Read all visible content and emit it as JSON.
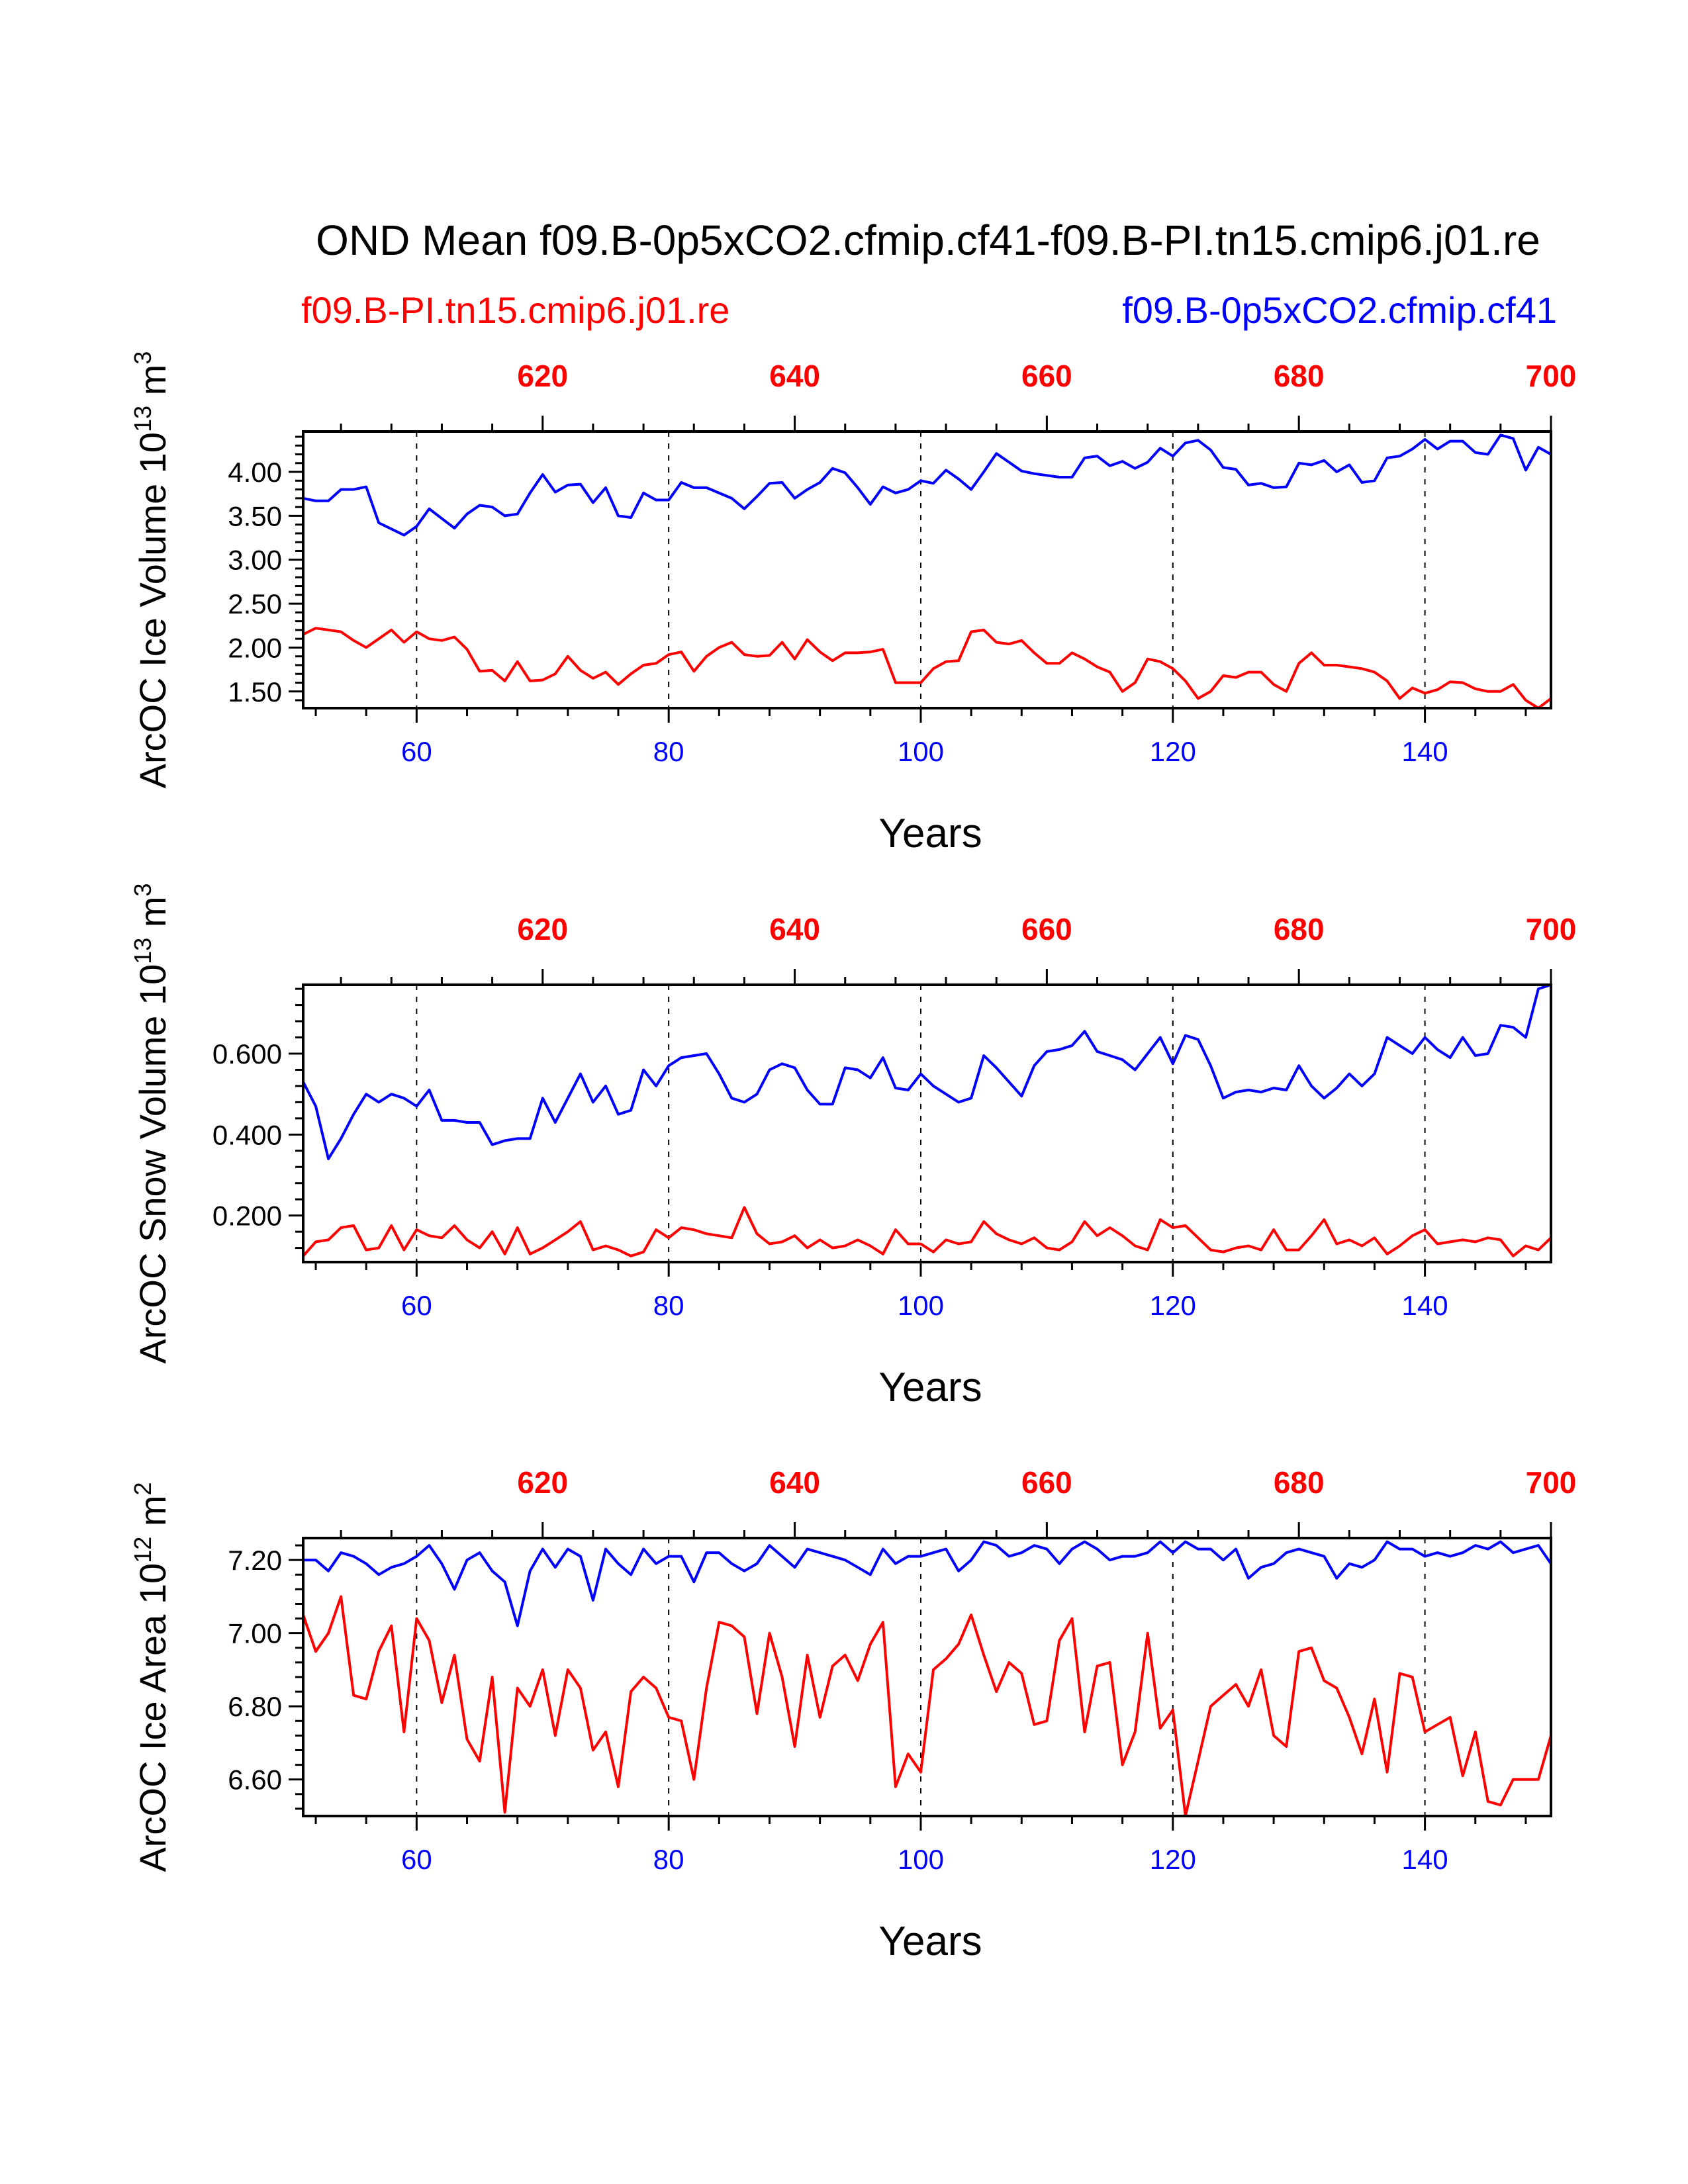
{
  "title": "OND Mean f09.B-0p5xCO2.cfmip.cf41-f09.B-PI.tn15.cmip6.j01.re",
  "legend": {
    "left": {
      "text": "f09.B-PI.tn15.cmip6.j01.re",
      "color": "#ff0000"
    },
    "right": {
      "text": "f09.B-0p5xCO2.cfmip.cf41",
      "color": "#0000ff"
    }
  },
  "chart_data": [
    {
      "type": "line",
      "ylabel_main": "ArcOC Ice Volume 10",
      "ylabel_exp": "13",
      "ylabel_unit": "m",
      "ylabel_unit_exp": "3",
      "xlabel": "Years",
      "xlim": [
        51,
        150
      ],
      "ylim": [
        1.31,
        4.46
      ],
      "yticks": [
        "1.50",
        "2.00",
        "2.50",
        "3.00",
        "3.50",
        "4.00"
      ],
      "ytick_values": [
        1.5,
        2.0,
        2.5,
        3.0,
        3.5,
        4.0
      ],
      "yminor_step": 0.1,
      "xticks_bottom": [
        "60",
        "80",
        "100",
        "120",
        "140"
      ],
      "xticks_top": [
        "620",
        "640",
        "660",
        "680",
        "700"
      ],
      "top_axis_offset": 550,
      "x_start": 51,
      "series": [
        {
          "name": "f09.B-0p5xCO2.cfmip.cf41",
          "color": "#0000ff",
          "values": [
            3.7,
            3.67,
            3.67,
            3.8,
            3.8,
            3.83,
            3.42,
            3.35,
            3.28,
            3.38,
            3.58,
            3.47,
            3.36,
            3.52,
            3.62,
            3.6,
            3.5,
            3.52,
            3.76,
            3.97,
            3.77,
            3.85,
            3.86,
            3.65,
            3.82,
            3.5,
            3.48,
            3.76,
            3.68,
            3.68,
            3.88,
            3.82,
            3.82,
            3.76,
            3.7,
            3.58,
            3.72,
            3.87,
            3.88,
            3.7,
            3.8,
            3.88,
            4.04,
            3.99,
            3.82,
            3.63,
            3.83,
            3.76,
            3.8,
            3.9,
            3.87,
            4.02,
            3.92,
            3.8,
            4.0,
            4.21,
            4.11,
            4.01,
            3.98,
            3.96,
            3.94,
            3.94,
            4.16,
            4.18,
            4.07,
            4.12,
            4.04,
            4.11,
            4.27,
            4.18,
            4.33,
            4.36,
            4.25,
            4.05,
            4.03,
            3.85,
            3.87,
            3.82,
            3.83,
            4.1,
            4.08,
            4.13,
            4.0,
            4.08,
            3.88,
            3.9,
            4.16,
            4.18,
            4.26,
            4.37,
            4.26,
            4.35,
            4.35,
            4.22,
            4.2,
            4.42,
            4.38,
            4.02,
            4.28,
            4.2
          ]
        },
        {
          "name": "f09.B-PI.tn15.cmip6.j01.re",
          "color": "#ff0000",
          "values": [
            2.15,
            2.22,
            2.2,
            2.18,
            2.08,
            2.0,
            2.1,
            2.2,
            2.06,
            2.18,
            2.1,
            2.08,
            2.12,
            1.98,
            1.73,
            1.74,
            1.62,
            1.84,
            1.62,
            1.63,
            1.7,
            1.9,
            1.74,
            1.65,
            1.72,
            1.58,
            1.7,
            1.8,
            1.82,
            1.92,
            1.95,
            1.73,
            1.9,
            2.0,
            2.06,
            1.92,
            1.9,
            1.91,
            2.06,
            1.87,
            2.09,
            1.95,
            1.85,
            1.94,
            1.94,
            1.95,
            1.98,
            1.6,
            1.6,
            1.6,
            1.76,
            1.84,
            1.85,
            2.18,
            2.2,
            2.06,
            2.04,
            2.08,
            1.94,
            1.82,
            1.82,
            1.94,
            1.87,
            1.78,
            1.72,
            1.5,
            1.6,
            1.87,
            1.84,
            1.76,
            1.62,
            1.42,
            1.5,
            1.68,
            1.66,
            1.72,
            1.72,
            1.58,
            1.5,
            1.82,
            1.94,
            1.8,
            1.8,
            1.78,
            1.76,
            1.72,
            1.62,
            1.42,
            1.54,
            1.48,
            1.52,
            1.61,
            1.6,
            1.53,
            1.5,
            1.5,
            1.58,
            1.4,
            1.31,
            1.42
          ]
        }
      ]
    },
    {
      "type": "line",
      "ylabel_main": "ArcOC Snow Volume 10",
      "ylabel_exp": "13",
      "ylabel_unit": "m",
      "ylabel_unit_exp": "3",
      "xlabel": "Years",
      "xlim": [
        51,
        150
      ],
      "ylim": [
        0.085,
        0.77
      ],
      "yticks": [
        "0.200",
        "0.400",
        "0.600"
      ],
      "ytick_values": [
        0.2,
        0.4,
        0.6
      ],
      "yminor_step": 0.04,
      "xticks_bottom": [
        "60",
        "80",
        "100",
        "120",
        "140"
      ],
      "xticks_top": [
        "620",
        "640",
        "660",
        "680",
        "700"
      ],
      "top_axis_offset": 550,
      "x_start": 51,
      "series": [
        {
          "name": "f09.B-0p5xCO2.cfmip.cf41",
          "color": "#0000ff",
          "values": [
            0.53,
            0.47,
            0.34,
            0.39,
            0.45,
            0.5,
            0.48,
            0.5,
            0.49,
            0.47,
            0.51,
            0.435,
            0.435,
            0.43,
            0.43,
            0.375,
            0.385,
            0.39,
            0.39,
            0.49,
            0.43,
            0.49,
            0.55,
            0.48,
            0.52,
            0.45,
            0.46,
            0.56,
            0.52,
            0.57,
            0.59,
            0.595,
            0.6,
            0.55,
            0.49,
            0.48,
            0.5,
            0.56,
            0.575,
            0.565,
            0.51,
            0.475,
            0.475,
            0.565,
            0.56,
            0.54,
            0.59,
            0.515,
            0.51,
            0.55,
            0.52,
            0.5,
            0.48,
            0.49,
            0.595,
            0.565,
            0.53,
            0.495,
            0.57,
            0.605,
            0.61,
            0.62,
            0.655,
            0.605,
            0.595,
            0.585,
            0.56,
            0.6,
            0.64,
            0.575,
            0.645,
            0.635,
            0.57,
            0.49,
            0.505,
            0.51,
            0.505,
            0.515,
            0.51,
            0.57,
            0.52,
            0.49,
            0.515,
            0.55,
            0.52,
            0.55,
            0.64,
            0.62,
            0.6,
            0.64,
            0.61,
            0.59,
            0.64,
            0.595,
            0.6,
            0.67,
            0.665,
            0.64,
            0.76,
            0.77
          ]
        },
        {
          "name": "f09.B-PI.tn15.cmip6.j01.re",
          "color": "#ff0000",
          "values": [
            0.1,
            0.135,
            0.14,
            0.17,
            0.175,
            0.115,
            0.12,
            0.175,
            0.115,
            0.165,
            0.15,
            0.145,
            0.175,
            0.14,
            0.12,
            0.16,
            0.105,
            0.17,
            0.105,
            0.12,
            0.14,
            0.16,
            0.185,
            0.115,
            0.125,
            0.115,
            0.1,
            0.11,
            0.165,
            0.145,
            0.17,
            0.165,
            0.155,
            0.15,
            0.145,
            0.22,
            0.155,
            0.13,
            0.135,
            0.15,
            0.12,
            0.14,
            0.12,
            0.125,
            0.14,
            0.125,
            0.105,
            0.165,
            0.13,
            0.13,
            0.11,
            0.14,
            0.13,
            0.135,
            0.185,
            0.155,
            0.14,
            0.13,
            0.145,
            0.12,
            0.115,
            0.135,
            0.185,
            0.15,
            0.17,
            0.15,
            0.125,
            0.115,
            0.19,
            0.17,
            0.175,
            0.145,
            0.115,
            0.11,
            0.12,
            0.125,
            0.115,
            0.165,
            0.115,
            0.115,
            0.15,
            0.19,
            0.13,
            0.14,
            0.125,
            0.145,
            0.105,
            0.125,
            0.15,
            0.165,
            0.13,
            0.135,
            0.14,
            0.135,
            0.145,
            0.14,
            0.1,
            0.125,
            0.115,
            0.145
          ]
        }
      ]
    },
    {
      "type": "line",
      "ylabel_main": "ArcOC Ice Area 10",
      "ylabel_exp": "12",
      "ylabel_unit": "m",
      "ylabel_unit_exp": "2",
      "xlabel": "Years",
      "xlim": [
        51,
        150
      ],
      "ylim": [
        6.5,
        7.26
      ],
      "yticks": [
        "6.60",
        "6.80",
        "7.00",
        "7.20"
      ],
      "ytick_values": [
        6.6,
        6.8,
        7.0,
        7.2
      ],
      "yminor_step": 0.04,
      "xticks_bottom": [
        "60",
        "80",
        "100",
        "120",
        "140"
      ],
      "xticks_top": [
        "620",
        "640",
        "660",
        "680",
        "700"
      ],
      "top_axis_offset": 550,
      "x_start": 51,
      "series": [
        {
          "name": "f09.B-0p5xCO2.cfmip.cf41",
          "color": "#0000ff",
          "values": [
            7.2,
            7.2,
            7.17,
            7.22,
            7.21,
            7.19,
            7.16,
            7.18,
            7.19,
            7.21,
            7.24,
            7.19,
            7.12,
            7.2,
            7.22,
            7.17,
            7.14,
            7.02,
            7.17,
            7.23,
            7.18,
            7.23,
            7.21,
            7.09,
            7.23,
            7.19,
            7.16,
            7.23,
            7.19,
            7.21,
            7.21,
            7.14,
            7.22,
            7.22,
            7.19,
            7.17,
            7.19,
            7.24,
            7.21,
            7.18,
            7.23,
            7.22,
            7.21,
            7.2,
            7.18,
            7.16,
            7.23,
            7.19,
            7.21,
            7.21,
            7.22,
            7.23,
            7.17,
            7.2,
            7.25,
            7.24,
            7.21,
            7.22,
            7.24,
            7.23,
            7.19,
            7.23,
            7.25,
            7.23,
            7.2,
            7.21,
            7.21,
            7.22,
            7.25,
            7.22,
            7.25,
            7.23,
            7.23,
            7.2,
            7.23,
            7.15,
            7.18,
            7.19,
            7.22,
            7.23,
            7.22,
            7.21,
            7.15,
            7.19,
            7.18,
            7.2,
            7.25,
            7.23,
            7.23,
            7.21,
            7.22,
            7.21,
            7.22,
            7.24,
            7.23,
            7.25,
            7.22,
            7.23,
            7.24,
            7.19
          ]
        },
        {
          "name": "f09.B-PI.tn15.cmip6.j01.re",
          "color": "#ff0000",
          "values": [
            7.05,
            6.95,
            7.0,
            7.1,
            6.83,
            6.82,
            6.95,
            7.02,
            6.73,
            7.04,
            6.98,
            6.81,
            6.94,
            6.71,
            6.65,
            6.88,
            6.51,
            6.85,
            6.8,
            6.9,
            6.72,
            6.9,
            6.85,
            6.68,
            6.73,
            6.58,
            6.84,
            6.88,
            6.85,
            6.77,
            6.76,
            6.6,
            6.85,
            7.03,
            7.02,
            6.99,
            6.78,
            7.0,
            6.88,
            6.69,
            6.94,
            6.77,
            6.91,
            6.94,
            6.87,
            6.97,
            7.03,
            6.58,
            6.67,
            6.62,
            6.9,
            6.93,
            6.97,
            7.05,
            6.94,
            6.84,
            6.92,
            6.89,
            6.75,
            6.76,
            6.98,
            7.04,
            6.73,
            6.91,
            6.92,
            6.64,
            6.73,
            7.0,
            6.74,
            6.79,
            6.5,
            6.65,
            6.8,
            6.83,
            6.86,
            6.8,
            6.9,
            6.72,
            6.69,
            6.95,
            6.96,
            6.87,
            6.85,
            6.77,
            6.67,
            6.82,
            6.62,
            6.89,
            6.88,
            6.73,
            6.75,
            6.77,
            6.61,
            6.73,
            6.54,
            6.53,
            6.6,
            6.6,
            6.6,
            6.72
          ]
        }
      ]
    }
  ]
}
